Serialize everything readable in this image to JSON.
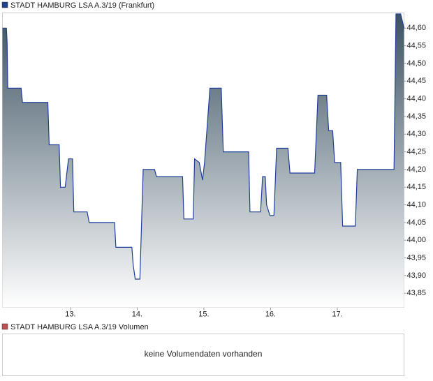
{
  "chart_data": {
    "type": "area-line",
    "legend": "STADT HAMBURG LSA A.3/19 (Frankfurt)",
    "color": "#1f3f9f",
    "legend_color": "#1f3f8f",
    "x": [
      11.98,
      12.04,
      12.05,
      12.06,
      12.26,
      12.28,
      12.66,
      12.68,
      12.83,
      12.85,
      12.92,
      12.97,
      13.03,
      13.05,
      13.25,
      13.28,
      13.66,
      13.68,
      13.92,
      13.94,
      13.97,
      14.04,
      14.09,
      14.26,
      14.29,
      14.68,
      14.7,
      14.84,
      14.86,
      14.93,
      14.98,
      15.01,
      15.09,
      15.26,
      15.29,
      15.67,
      15.69,
      15.85,
      15.88,
      15.92,
      15.94,
      15.99,
      16.05,
      16.09,
      16.26,
      16.29,
      16.66,
      16.71,
      16.84,
      16.87,
      16.93,
      16.96,
      17.05,
      17.08,
      17.27,
      17.3,
      17.85,
      17.88,
      17.95,
      18.0
    ],
    "values": [
      44.6,
      44.6,
      44.56,
      44.43,
      44.43,
      44.39,
      44.39,
      44.27,
      44.27,
      44.15,
      44.15,
      44.23,
      44.23,
      44.08,
      44.08,
      44.05,
      44.05,
      43.98,
      43.98,
      43.93,
      43.89,
      43.89,
      44.2,
      44.2,
      44.18,
      44.18,
      44.06,
      44.06,
      44.23,
      44.22,
      44.17,
      44.22,
      44.43,
      44.43,
      44.25,
      44.25,
      44.08,
      44.08,
      44.18,
      44.18,
      44.1,
      44.07,
      44.07,
      44.26,
      44.26,
      44.19,
      44.19,
      44.41,
      44.41,
      44.31,
      44.31,
      44.22,
      44.22,
      44.04,
      44.04,
      44.2,
      44.2,
      44.64,
      44.64,
      44.6
    ],
    "xlim": [
      11.98,
      18.0
    ],
    "xticks": [
      {
        "value": 13,
        "label": "13."
      },
      {
        "value": 14,
        "label": "14."
      },
      {
        "value": 15,
        "label": "15."
      },
      {
        "value": 16,
        "label": "16."
      },
      {
        "value": 17,
        "label": "17."
      }
    ],
    "ylim": [
      43.81,
      44.643
    ],
    "yticks": [
      {
        "value": 43.85,
        "label": "43,85"
      },
      {
        "value": 43.9,
        "label": "43,90"
      },
      {
        "value": 43.95,
        "label": "43,95"
      },
      {
        "value": 44.0,
        "label": "44,00"
      },
      {
        "value": 44.05,
        "label": "44,05"
      },
      {
        "value": 44.1,
        "label": "44,10"
      },
      {
        "value": 44.15,
        "label": "44,15"
      },
      {
        "value": 44.2,
        "label": "44,20"
      },
      {
        "value": 44.25,
        "label": "44,25"
      },
      {
        "value": 44.3,
        "label": "44,30"
      },
      {
        "value": 44.35,
        "label": "44,35"
      },
      {
        "value": 44.4,
        "label": "44,40"
      },
      {
        "value": 44.45,
        "label": "44,45"
      },
      {
        "value": 44.5,
        "label": "44,50"
      },
      {
        "value": 44.55,
        "label": "44,55"
      },
      {
        "value": 44.6,
        "label": "44,60"
      }
    ],
    "grid": false
  },
  "volume_panel": {
    "legend": "STADT HAMBURG LSA A.3/19 Volumen",
    "legend_color": "#c05050",
    "message": "keine Volumendaten vorhanden"
  }
}
